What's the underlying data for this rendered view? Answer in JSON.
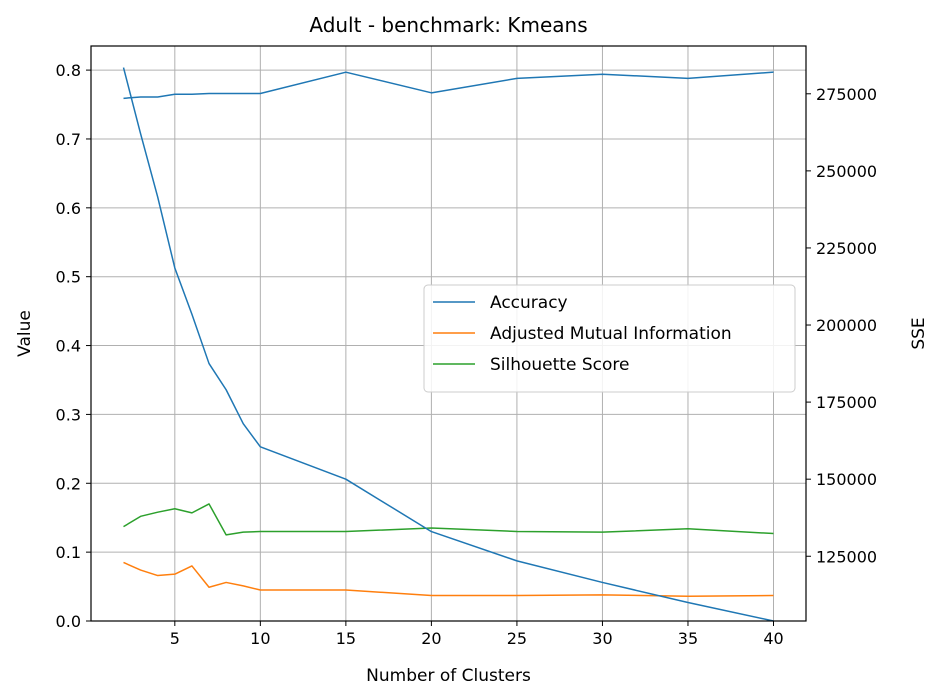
{
  "chart_data": {
    "type": "line",
    "title": "Adult - benchmark: Kmeans",
    "xlabel": "Number of Clusters",
    "ylabel": "Value",
    "y2label": "SSE",
    "xlim": [
      0.1,
      41.9
    ],
    "ylim": [
      0,
      0.835
    ],
    "y2lim": [
      104000,
      290500
    ],
    "x_ticks": [
      5,
      10,
      15,
      20,
      25,
      30,
      35,
      40
    ],
    "y_ticks": [
      0.0,
      0.1,
      0.2,
      0.3,
      0.4,
      0.5,
      0.6,
      0.7,
      0.8
    ],
    "y_tick_labels": [
      "0.0",
      "0.1",
      "0.2",
      "0.3",
      "0.4",
      "0.5",
      "0.6",
      "0.7",
      "0.8"
    ],
    "y2_ticks": [
      125000,
      150000,
      175000,
      200000,
      225000,
      250000,
      275000
    ],
    "grid": true,
    "legend_position": "center-right",
    "colors": {
      "accuracy": "#1f77b4",
      "ami": "#ff7f0e",
      "silhouette": "#2ca02c",
      "sse": "#1f77b4",
      "grid": "#b0b0b0"
    },
    "series": [
      {
        "name": "Accuracy",
        "axis": "left",
        "x": [
          2,
          3,
          4,
          5,
          6,
          7,
          8,
          9,
          10,
          15,
          20,
          25,
          30,
          35,
          40
        ],
        "values": [
          0.759,
          0.761,
          0.761,
          0.765,
          0.765,
          0.766,
          0.766,
          0.766,
          0.766,
          0.797,
          0.767,
          0.788,
          0.794,
          0.788,
          0.797
        ]
      },
      {
        "name": "Adjusted Mutual Information",
        "axis": "left",
        "x": [
          2,
          3,
          4,
          5,
          6,
          7,
          8,
          9,
          10,
          15,
          20,
          25,
          30,
          35,
          40
        ],
        "values": [
          0.085,
          0.074,
          0.066,
          0.068,
          0.08,
          0.049,
          0.056,
          0.051,
          0.045,
          0.045,
          0.037,
          0.037,
          0.038,
          0.036,
          0.037
        ]
      },
      {
        "name": "Silhouette Score",
        "axis": "left",
        "x": [
          2,
          3,
          4,
          5,
          6,
          7,
          8,
          9,
          10,
          15,
          20,
          25,
          30,
          35,
          40
        ],
        "values": [
          0.137,
          0.152,
          0.158,
          0.163,
          0.157,
          0.17,
          0.125,
          0.129,
          0.13,
          0.13,
          0.135,
          0.13,
          0.129,
          0.134,
          0.127
        ]
      },
      {
        "axis": "right",
        "x": [
          2,
          3,
          4,
          5,
          6,
          7,
          8,
          9,
          10,
          15,
          20,
          25,
          30,
          35,
          40
        ],
        "values": [
          283500,
          262000,
          241500,
          218500,
          203500,
          187500,
          179000,
          168000,
          160500,
          150000,
          133000,
          123500,
          116500,
          110000,
          104000
        ]
      }
    ]
  }
}
